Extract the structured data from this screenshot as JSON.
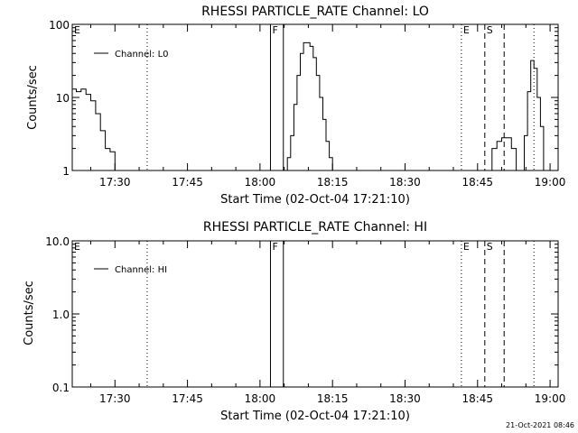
{
  "stamp": "21-Oct-2021 08:46",
  "chart_data": [
    {
      "type": "line",
      "title": "RHESSI PARTICLE_RATE Channel: LO",
      "xlabel": "Start Time (02-Oct-04 17:21:10)",
      "ylabel": "Counts/sec",
      "yscale": "log",
      "xlim": [
        "17:21:10",
        "19:01:40"
      ],
      "ylim": [
        1,
        100
      ],
      "x_ticks": [
        "17:30",
        "17:45",
        "18:00",
        "18:15",
        "18:30",
        "18:45",
        "19:00"
      ],
      "y_ticks": [
        {
          "value": 100,
          "label": "100"
        },
        {
          "value": 10,
          "label": "10"
        },
        {
          "value": 1,
          "label": "1"
        }
      ],
      "grid": false,
      "legend": {
        "placement": "top-left",
        "entries": [
          "Channel: L0"
        ]
      },
      "series": [
        {
          "name": "Channel: L0",
          "x": [
            "17:21:10",
            "17:22:00",
            "17:23:00",
            "17:24:00",
            "17:25:00",
            "17:26:00",
            "17:27:00",
            "17:28:00",
            "17:29:00",
            "17:30:00",
            "18:05:00",
            "18:05:40",
            "18:06:20",
            "18:07:00",
            "18:07:40",
            "18:08:20",
            "18:09:00",
            "18:09:40",
            "18:10:20",
            "18:11:00",
            "18:11:40",
            "18:12:20",
            "18:13:00",
            "18:13:40",
            "18:14:20",
            "18:15:00",
            "18:47:00",
            "18:48:00",
            "18:49:00",
            "18:50:00",
            "18:51:00",
            "18:52:00",
            "18:53:00",
            "18:54:00",
            "18:54:40",
            "18:55:20",
            "18:56:00",
            "18:56:40",
            "18:57:20",
            "18:58:00",
            "18:58:40"
          ],
          "values": [
            13,
            12,
            13,
            11,
            9,
            6,
            3.5,
            2,
            1.8,
            1,
            1,
            1.5,
            3,
            8,
            20,
            40,
            56,
            56,
            50,
            35,
            20,
            10,
            5,
            2.5,
            1.5,
            1,
            1,
            2,
            2.5,
            2.8,
            2.8,
            2,
            1,
            1,
            3,
            12,
            32,
            25,
            10,
            4,
            1
          ]
        }
      ],
      "annotations": [
        {
          "label": "E",
          "time": "17:21:10",
          "style": "none"
        },
        {
          "label": "",
          "time": "17:36:40",
          "style": "dotted"
        },
        {
          "label": "F",
          "time": "18:02:10",
          "style": "solid"
        },
        {
          "label": "",
          "time": "18:04:50",
          "style": "solid"
        },
        {
          "label": "E",
          "time": "18:41:40",
          "style": "dotted"
        },
        {
          "label": "S",
          "time": "18:46:30",
          "style": "dashed"
        },
        {
          "label": "",
          "time": "18:50:30",
          "style": "dashed"
        },
        {
          "label": "",
          "time": "18:56:40",
          "style": "dotted"
        }
      ]
    },
    {
      "type": "line",
      "title": "RHESSI PARTICLE_RATE Channel: HI",
      "xlabel": "Start Time (02-Oct-04 17:21:10)",
      "ylabel": "Counts/sec",
      "yscale": "log",
      "xlim": [
        "17:21:10",
        "19:01:40"
      ],
      "ylim": [
        0.1,
        10
      ],
      "x_ticks": [
        "17:30",
        "17:45",
        "18:00",
        "18:15",
        "18:30",
        "18:45",
        "19:00"
      ],
      "y_ticks": [
        {
          "value": 10,
          "label": "10.0"
        },
        {
          "value": 1,
          "label": "1.0"
        },
        {
          "value": 0.1,
          "label": "0.1"
        }
      ],
      "grid": false,
      "legend": {
        "placement": "top-left",
        "entries": [
          "Channel: HI"
        ]
      },
      "series": [
        {
          "name": "Channel: HI",
          "x": [],
          "values": []
        }
      ],
      "annotations": [
        {
          "label": "E",
          "time": "17:21:10",
          "style": "none"
        },
        {
          "label": "",
          "time": "17:36:40",
          "style": "dotted"
        },
        {
          "label": "F",
          "time": "18:02:10",
          "style": "solid"
        },
        {
          "label": "",
          "time": "18:04:50",
          "style": "solid"
        },
        {
          "label": "E",
          "time": "18:41:40",
          "style": "dotted"
        },
        {
          "label": "S",
          "time": "18:46:30",
          "style": "dashed"
        },
        {
          "label": "",
          "time": "18:50:30",
          "style": "dashed"
        },
        {
          "label": "",
          "time": "18:56:40",
          "style": "dotted"
        }
      ]
    }
  ]
}
